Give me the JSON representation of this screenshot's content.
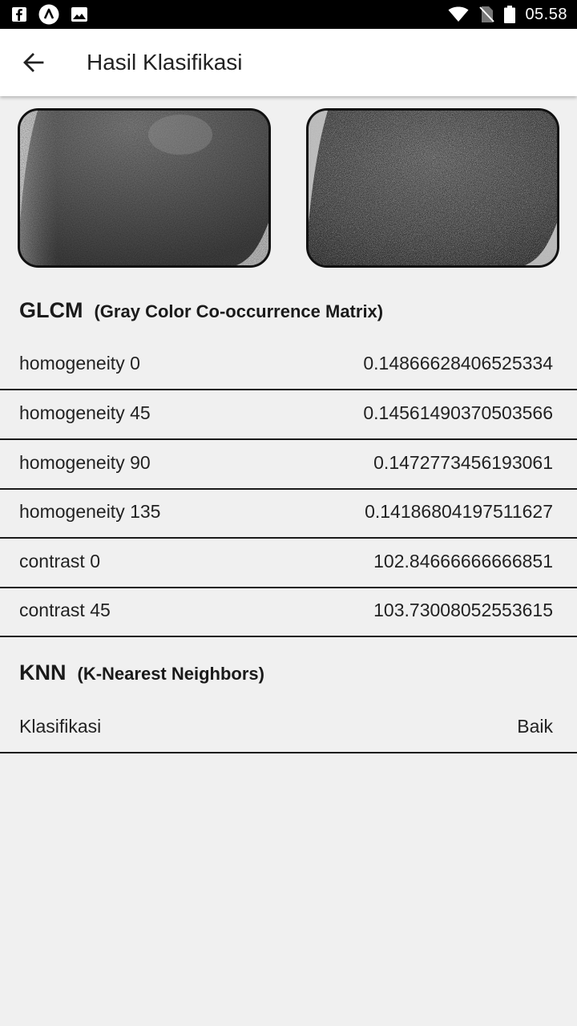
{
  "status_bar": {
    "time": "05.58",
    "icons": [
      "facebook-icon",
      "app-a-icon",
      "image-icon",
      "wifi-icon",
      "no-sim-icon",
      "battery-icon"
    ]
  },
  "app_bar": {
    "back_icon": "arrow-left-icon",
    "title": "Hasil Klasifikasi"
  },
  "images": {
    "left": "original-grayscale-image",
    "right": "processed-texture-image"
  },
  "glcm": {
    "title": "GLCM",
    "subtitle": "(Gray Color Co-occurrence Matrix)",
    "rows": [
      {
        "label": "homogeneity 0",
        "value": "0.14866628406525334"
      },
      {
        "label": "homogeneity 45",
        "value": "0.14561490370503566"
      },
      {
        "label": "homogeneity 90",
        "value": "0.1472773456193061"
      },
      {
        "label": "homogeneity 135",
        "value": "0.14186804197511627"
      },
      {
        "label": "contrast 0",
        "value": "102.84666666666851"
      },
      {
        "label": "contrast 45",
        "value": "103.73008052553615"
      }
    ]
  },
  "knn": {
    "title": "KNN",
    "subtitle": "(K-Nearest Neighbors)",
    "rows": [
      {
        "label": "Klasifikasi",
        "value": "Baik"
      }
    ]
  }
}
